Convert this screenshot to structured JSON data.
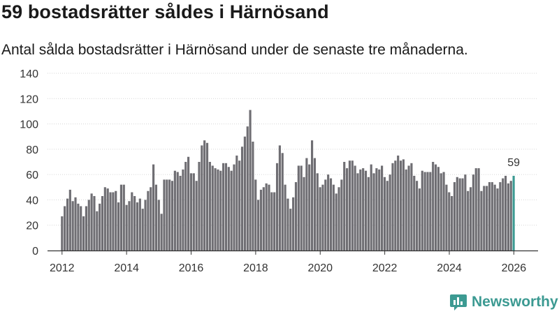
{
  "header": {
    "title": "59 bostadsrätter såldes i Härnösand",
    "subtitle": "Antal sålda bostadsrätter i Härnösand under de senaste tre månaderna."
  },
  "brand": {
    "name": "Newsworthy",
    "color": "#3c9a92"
  },
  "chart_data": {
    "type": "bar",
    "title": "59 bostadsrätter såldes i Härnösand",
    "subtitle": "Antal sålda bostadsrätter i Härnösand under de senaste tre månaderna.",
    "xlabel": "",
    "ylabel": "",
    "x_start": 2012,
    "x_step_years": 0.0833,
    "ylim": [
      0,
      140
    ],
    "yticks": [
      "0",
      "20",
      "40",
      "60",
      "80",
      "100",
      "120",
      "140"
    ],
    "xticks": [
      "2012",
      "2014",
      "2016",
      "2018",
      "2020",
      "2022",
      "2024",
      "2026"
    ],
    "grid": true,
    "bar_color": "#6f6e73",
    "highlight_color": "#3c9a92",
    "highlight_label": "59",
    "values": [
      27,
      35,
      41,
      48,
      39,
      42,
      37,
      35,
      27,
      35,
      40,
      45,
      43,
      31,
      37,
      43,
      50,
      49,
      46,
      46,
      47,
      38,
      52,
      52,
      36,
      39,
      46,
      43,
      38,
      41,
      33,
      40,
      47,
      50,
      68,
      52,
      40,
      29,
      56,
      56,
      56,
      55,
      63,
      62,
      59,
      64,
      70,
      74,
      61,
      61,
      55,
      70,
      83,
      87,
      85,
      70,
      67,
      65,
      64,
      63,
      69,
      69,
      66,
      63,
      68,
      75,
      71,
      82,
      90,
      98,
      111,
      86,
      56,
      40,
      48,
      50,
      53,
      52,
      46,
      46,
      69,
      83,
      77,
      52,
      41,
      33,
      42,
      54,
      67,
      67,
      58,
      73,
      68,
      87,
      73,
      61,
      50,
      52,
      56,
      60,
      57,
      52,
      45,
      50,
      56,
      70,
      65,
      71,
      71,
      67,
      61,
      64,
      65,
      63,
      58,
      68,
      61,
      65,
      64,
      67,
      58,
      55,
      60,
      69,
      71,
      75,
      71,
      72,
      64,
      67,
      69,
      59,
      55,
      49,
      63,
      62,
      62,
      62,
      70,
      68,
      66,
      61,
      62,
      52,
      46,
      43,
      54,
      58,
      57,
      57,
      60,
      47,
      50,
      60,
      65,
      65,
      47,
      51,
      51,
      54,
      54,
      52,
      49,
      54,
      57,
      59,
      53,
      55,
      59
    ]
  }
}
